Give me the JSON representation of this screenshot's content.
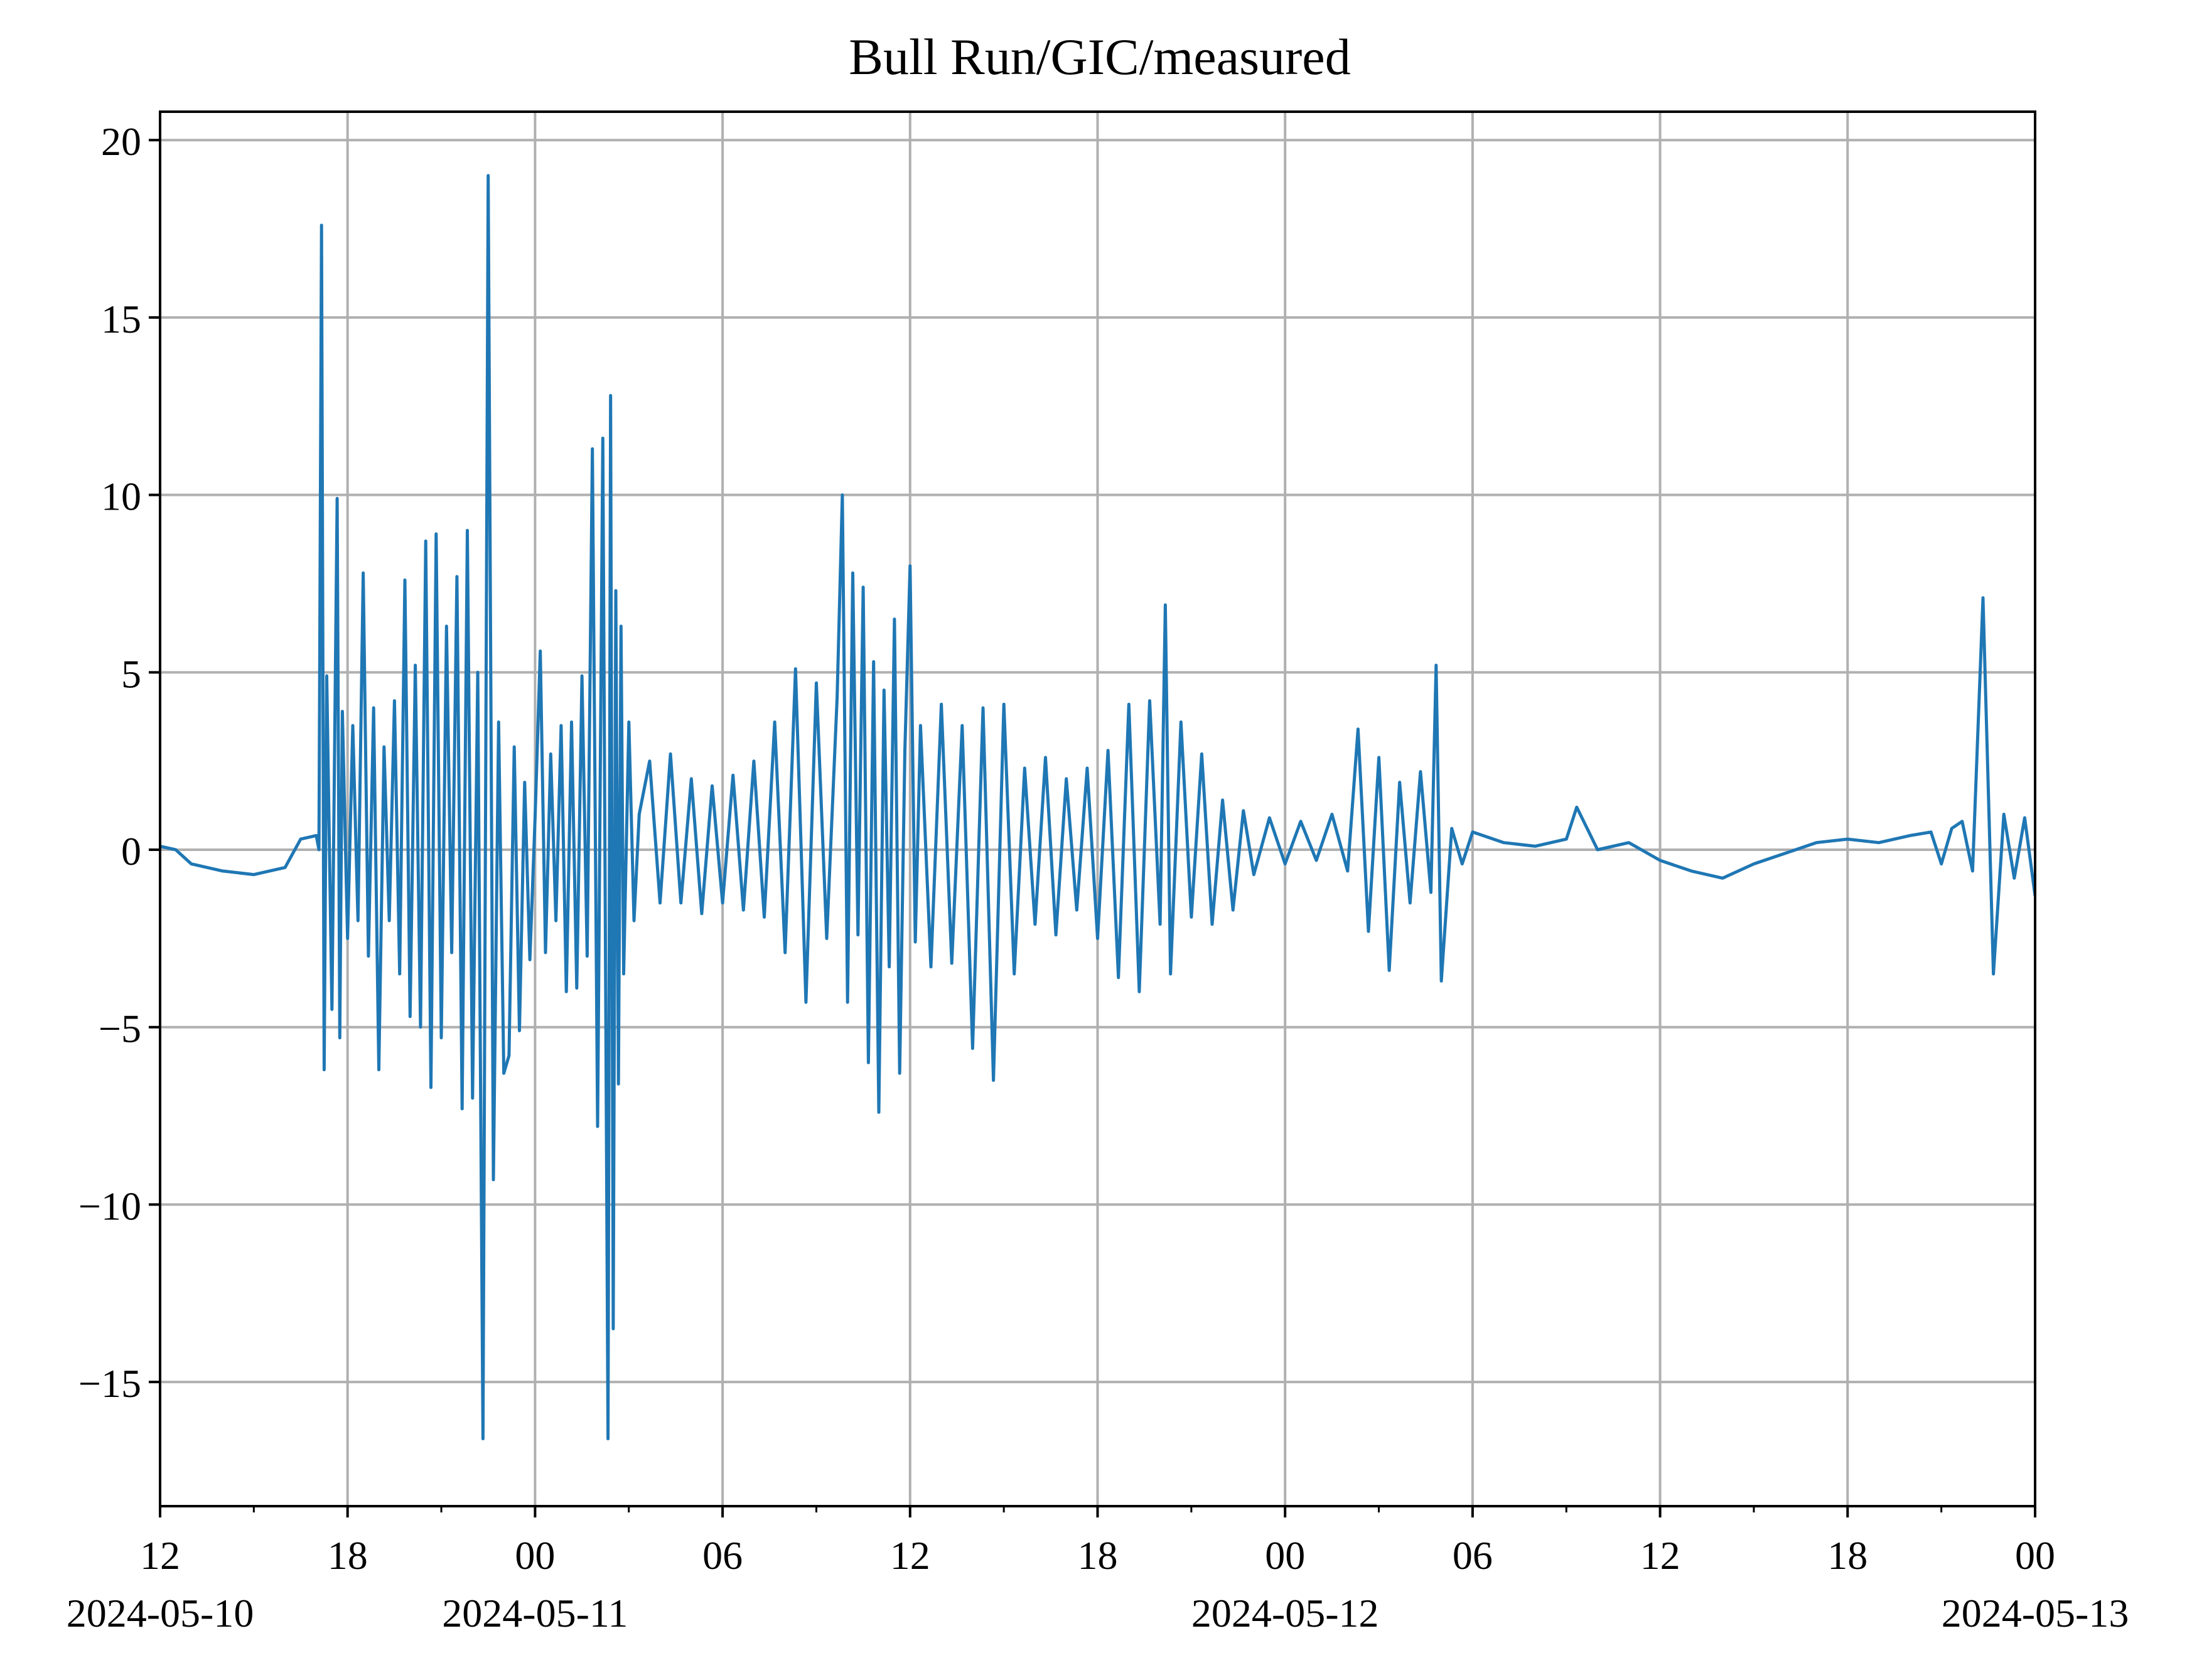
{
  "chart_data": {
    "type": "line",
    "title": "Bull Run/GIC/measured",
    "xlabel": "",
    "ylabel": "",
    "x_range": [
      "2024-05-10 12:00",
      "2024-05-13 00:00"
    ],
    "ylim": [
      -18.5,
      20.8
    ],
    "grid": true,
    "legend": "none",
    "colors": {
      "series": "#1f77b4",
      "grid": "#b0b0b0",
      "axis": "#000000"
    },
    "y_ticks": [
      {
        "value": 20,
        "label": "20"
      },
      {
        "value": 15,
        "label": "15"
      },
      {
        "value": 10,
        "label": "10"
      },
      {
        "value": 5,
        "label": "5"
      },
      {
        "value": 0,
        "label": "0"
      },
      {
        "value": -5,
        "label": "−5"
      },
      {
        "value": -10,
        "label": "−10"
      },
      {
        "value": -15,
        "label": "−15"
      }
    ],
    "x_ticks": [
      {
        "value": "2024-05-10 12:00",
        "label": "12",
        "date": "2024-05-10"
      },
      {
        "value": "2024-05-10 18:00",
        "label": "18",
        "date": ""
      },
      {
        "value": "2024-05-11 00:00",
        "label": "00",
        "date": "2024-05-11"
      },
      {
        "value": "2024-05-11 06:00",
        "label": "06",
        "date": ""
      },
      {
        "value": "2024-05-11 12:00",
        "label": "12",
        "date": ""
      },
      {
        "value": "2024-05-11 18:00",
        "label": "18",
        "date": ""
      },
      {
        "value": "2024-05-12 00:00",
        "label": "00",
        "date": "2024-05-12"
      },
      {
        "value": "2024-05-12 06:00",
        "label": "06",
        "date": ""
      },
      {
        "value": "2024-05-12 12:00",
        "label": "12",
        "date": ""
      },
      {
        "value": "2024-05-12 18:00",
        "label": "18",
        "date": ""
      },
      {
        "value": "2024-05-13 00:00",
        "label": "00",
        "date": "2024-05-13"
      }
    ],
    "x_minor_ticks": [
      "2024-05-10 15:00",
      "2024-05-10 21:00",
      "2024-05-11 03:00",
      "2024-05-11 09:00",
      "2024-05-11 15:00",
      "2024-05-11 21:00",
      "2024-05-12 03:00",
      "2024-05-12 09:00",
      "2024-05-12 15:00",
      "2024-05-12 21:00"
    ],
    "series": [
      {
        "x": [
          "2024-05-10 12:00",
          "2024-05-10 12:30",
          "2024-05-10 13:00",
          "2024-05-10 14:00",
          "2024-05-10 15:00",
          "2024-05-10 16:00",
          "2024-05-10 16:30",
          "2024-05-10 17:00",
          "2024-05-10 17:05",
          "2024-05-10 17:10",
          "2024-05-10 17:15",
          "2024-05-10 17:20",
          "2024-05-10 17:30",
          "2024-05-10 17:40",
          "2024-05-10 17:45",
          "2024-05-10 17:50",
          "2024-05-10 18:00",
          "2024-05-10 18:10",
          "2024-05-10 18:20",
          "2024-05-10 18:30",
          "2024-05-10 18:40",
          "2024-05-10 18:50",
          "2024-05-10 19:00",
          "2024-05-10 19:10",
          "2024-05-10 19:20",
          "2024-05-10 19:30",
          "2024-05-10 19:40",
          "2024-05-10 19:50",
          "2024-05-10 20:00",
          "2024-05-10 20:10",
          "2024-05-10 20:20",
          "2024-05-10 20:30",
          "2024-05-10 20:40",
          "2024-05-10 20:50",
          "2024-05-10 21:00",
          "2024-05-10 21:10",
          "2024-05-10 21:20",
          "2024-05-10 21:30",
          "2024-05-10 21:40",
          "2024-05-10 21:50",
          "2024-05-10 22:00",
          "2024-05-10 22:10",
          "2024-05-10 22:20",
          "2024-05-10 22:30",
          "2024-05-10 22:40",
          "2024-05-10 22:50",
          "2024-05-10 23:00",
          "2024-05-10 23:10",
          "2024-05-10 23:20",
          "2024-05-10 23:30",
          "2024-05-10 23:40",
          "2024-05-10 23:50",
          "2024-05-11 00:00",
          "2024-05-11 00:10",
          "2024-05-11 00:20",
          "2024-05-11 00:30",
          "2024-05-11 00:40",
          "2024-05-11 00:50",
          "2024-05-11 01:00",
          "2024-05-11 01:10",
          "2024-05-11 01:20",
          "2024-05-11 01:30",
          "2024-05-11 01:40",
          "2024-05-11 01:50",
          "2024-05-11 02:00",
          "2024-05-11 02:10",
          "2024-05-11 02:20",
          "2024-05-11 02:25",
          "2024-05-11 02:30",
          "2024-05-11 02:35",
          "2024-05-11 02:40",
          "2024-05-11 02:45",
          "2024-05-11 02:50",
          "2024-05-11 03:00",
          "2024-05-11 03:10",
          "2024-05-11 03:20",
          "2024-05-11 03:40",
          "2024-05-11 04:00",
          "2024-05-11 04:20",
          "2024-05-11 04:40",
          "2024-05-11 05:00",
          "2024-05-11 05:20",
          "2024-05-11 05:40",
          "2024-05-11 06:00",
          "2024-05-11 06:20",
          "2024-05-11 06:40",
          "2024-05-11 07:00",
          "2024-05-11 07:20",
          "2024-05-11 07:40",
          "2024-05-11 08:00",
          "2024-05-11 08:20",
          "2024-05-11 08:40",
          "2024-05-11 09:00",
          "2024-05-11 09:20",
          "2024-05-11 09:40",
          "2024-05-11 09:50",
          "2024-05-11 10:00",
          "2024-05-11 10:10",
          "2024-05-11 10:20",
          "2024-05-11 10:30",
          "2024-05-11 10:40",
          "2024-05-11 10:50",
          "2024-05-11 11:00",
          "2024-05-11 11:10",
          "2024-05-11 11:20",
          "2024-05-11 11:30",
          "2024-05-11 11:40",
          "2024-05-11 11:50",
          "2024-05-11 12:00",
          "2024-05-11 12:10",
          "2024-05-11 12:20",
          "2024-05-11 12:40",
          "2024-05-11 13:00",
          "2024-05-11 13:20",
          "2024-05-11 13:40",
          "2024-05-11 14:00",
          "2024-05-11 14:20",
          "2024-05-11 14:40",
          "2024-05-11 15:00",
          "2024-05-11 15:20",
          "2024-05-11 15:40",
          "2024-05-11 16:00",
          "2024-05-11 16:20",
          "2024-05-11 16:40",
          "2024-05-11 17:00",
          "2024-05-11 17:20",
          "2024-05-11 17:40",
          "2024-05-11 18:00",
          "2024-05-11 18:20",
          "2024-05-11 18:40",
          "2024-05-11 19:00",
          "2024-05-11 19:20",
          "2024-05-11 19:40",
          "2024-05-11 20:00",
          "2024-05-11 20:10",
          "2024-05-11 20:20",
          "2024-05-11 20:40",
          "2024-05-11 21:00",
          "2024-05-11 21:20",
          "2024-05-11 21:40",
          "2024-05-11 22:00",
          "2024-05-11 22:20",
          "2024-05-11 22:40",
          "2024-05-11 23:00",
          "2024-05-11 23:30",
          "2024-05-12 00:00",
          "2024-05-12 00:30",
          "2024-05-12 01:00",
          "2024-05-12 01:30",
          "2024-05-12 02:00",
          "2024-05-12 02:20",
          "2024-05-12 02:40",
          "2024-05-12 03:00",
          "2024-05-12 03:20",
          "2024-05-12 03:40",
          "2024-05-12 04:00",
          "2024-05-12 04:20",
          "2024-05-12 04:40",
          "2024-05-12 04:50",
          "2024-05-12 05:00",
          "2024-05-12 05:20",
          "2024-05-12 05:40",
          "2024-05-12 06:00",
          "2024-05-12 07:00",
          "2024-05-12 08:00",
          "2024-05-12 09:00",
          "2024-05-12 09:20",
          "2024-05-12 10:00",
          "2024-05-12 11:00",
          "2024-05-12 12:00",
          "2024-05-12 13:00",
          "2024-05-12 14:00",
          "2024-05-12 15:00",
          "2024-05-12 16:00",
          "2024-05-12 17:00",
          "2024-05-12 18:00",
          "2024-05-12 19:00",
          "2024-05-12 20:00",
          "2024-05-12 20:40",
          "2024-05-12 21:00",
          "2024-05-12 21:20",
          "2024-05-12 21:40",
          "2024-05-12 22:00",
          "2024-05-12 22:20",
          "2024-05-12 22:40",
          "2024-05-12 23:00",
          "2024-05-12 23:20",
          "2024-05-12 23:40",
          "2024-05-13 00:00"
        ],
        "y": [
          0.1,
          0.0,
          -0.4,
          -0.6,
          -0.7,
          -0.5,
          0.3,
          0.4,
          0.0,
          17.6,
          -6.2,
          4.9,
          -4.5,
          9.9,
          -5.3,
          3.9,
          -2.5,
          3.5,
          -2.0,
          7.8,
          -3.0,
          4.0,
          -6.2,
          2.9,
          -2.0,
          4.2,
          -3.5,
          7.6,
          -4.7,
          5.2,
          -5.0,
          8.7,
          -6.7,
          8.9,
          -5.3,
          6.3,
          -2.9,
          7.7,
          -7.3,
          9.0,
          -7.0,
          5.0,
          -16.6,
          19.0,
          -9.3,
          3.6,
          -6.3,
          -5.8,
          2.9,
          -5.1,
          1.9,
          -3.1,
          0.9,
          5.6,
          -2.9,
          2.7,
          -2.0,
          3.5,
          -4.0,
          3.6,
          -3.9,
          4.9,
          -3.0,
          11.3,
          -7.8,
          11.6,
          -16.6,
          12.8,
          -13.5,
          7.3,
          -6.6,
          6.3,
          -3.5,
          3.6,
          -2.0,
          1.0,
          2.5,
          -1.5,
          2.7,
          -1.5,
          2.0,
          -1.8,
          1.8,
          -1.5,
          2.1,
          -1.7,
          2.5,
          -1.9,
          3.6,
          -2.9,
          5.1,
          -4.3,
          4.7,
          -2.5,
          4.3,
          10.0,
          -4.3,
          7.8,
          -2.4,
          7.4,
          -6.0,
          5.3,
          -7.4,
          4.5,
          -3.3,
          6.5,
          -6.3,
          2.8,
          8.0,
          -2.6,
          3.5,
          -3.3,
          4.1,
          -3.2,
          3.5,
          -5.6,
          4.0,
          -6.5,
          4.1,
          -3.5,
          2.3,
          -2.1,
          2.6,
          -2.4,
          2.0,
          -1.7,
          2.3,
          -2.5,
          2.8,
          -3.6,
          4.1,
          -4.0,
          4.2,
          -2.1,
          6.9,
          -3.5,
          3.6,
          -1.9,
          2.7,
          -2.1,
          1.4,
          -1.7,
          1.1,
          -0.7,
          0.9,
          -0.4,
          0.8,
          -0.3,
          1.0,
          -0.6,
          3.4,
          -2.3,
          2.6,
          -3.4,
          1.9,
          -1.5,
          2.2,
          -1.2,
          5.2,
          -3.7,
          0.6,
          -0.4,
          0.5,
          0.2,
          0.1,
          0.3,
          1.2,
          0.0,
          0.2,
          -0.3,
          -0.6,
          -0.8,
          -0.4,
          -0.1,
          0.2,
          0.3,
          0.2,
          0.4,
          0.5,
          -0.4,
          0.6,
          0.8,
          -0.6,
          7.1,
          -3.5,
          1.0,
          -0.8,
          0.9,
          -1.3
        ]
      }
    ]
  }
}
